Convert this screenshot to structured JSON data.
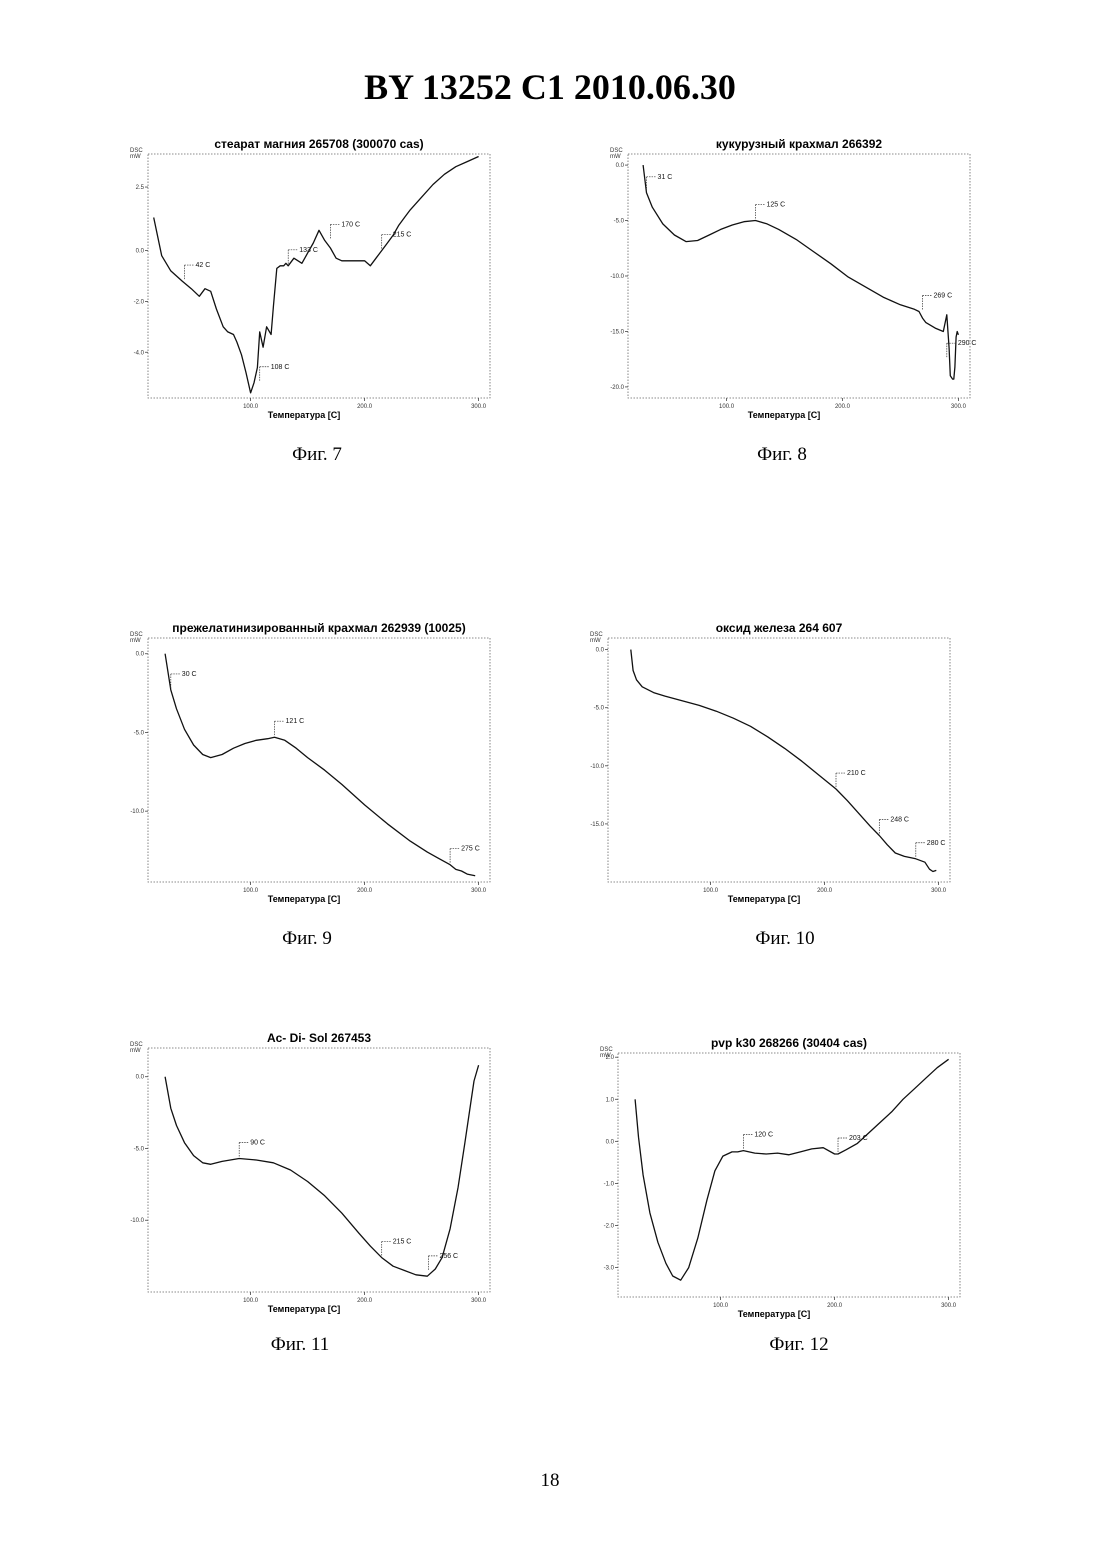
{
  "header": {
    "text": "BY  13252  C1  2010.06.30"
  },
  "page_number": "18",
  "y_unit": {
    "line1": "DSC",
    "line2": "mW"
  },
  "x_axis_label": "Температура [C]",
  "figures": [
    {
      "caption": "Фиг. 7"
    },
    {
      "caption": "Фиг. 8"
    },
    {
      "caption": "Фиг. 9"
    },
    {
      "caption": "Фиг. 10"
    },
    {
      "caption": "Фиг. 11"
    },
    {
      "caption": "Фиг. 12"
    }
  ],
  "chart_data": [
    {
      "type": "line",
      "title": "стеарат магния 265708 (300070 cas)",
      "xlabel": "Температура [C]",
      "ylabel": "DSC mW",
      "xlim": [
        10,
        310
      ],
      "ylim": [
        -5.8,
        3.8
      ],
      "x_ticks": [
        {
          "value": 100,
          "label": "100.0"
        },
        {
          "value": 200,
          "label": "200.0"
        },
        {
          "value": 300,
          "label": "300.0"
        }
      ],
      "y_ticks": [
        {
          "value": 2.5,
          "label": "2.5"
        },
        {
          "value": 0,
          "label": "0.0"
        },
        {
          "value": -2,
          "label": "-2.0"
        },
        {
          "value": -4,
          "label": "-4.0"
        }
      ],
      "series": [
        {
          "x": [
            15,
            22,
            30,
            40,
            48,
            55,
            60,
            65,
            70,
            76,
            80,
            85,
            88,
            92,
            96,
            100,
            103,
            106,
            108,
            111,
            114,
            118,
            120,
            123,
            126,
            129,
            131,
            133,
            138,
            145,
            150,
            155,
            160,
            165,
            170,
            175,
            180,
            190,
            200,
            205,
            210,
            215,
            220,
            225,
            230,
            235,
            240,
            250,
            260,
            270,
            280,
            290,
            300
          ],
          "y": [
            1.3,
            -0.2,
            -0.8,
            -1.2,
            -1.5,
            -1.8,
            -1.5,
            -1.6,
            -2.3,
            -3.0,
            -3.2,
            -3.3,
            -3.6,
            -4.1,
            -4.8,
            -5.6,
            -5.2,
            -4.6,
            -3.2,
            -3.8,
            -3.0,
            -3.3,
            -2.2,
            -0.7,
            -0.6,
            -0.6,
            -0.5,
            -0.6,
            -0.3,
            -0.5,
            -0.1,
            0.3,
            0.8,
            0.4,
            0.1,
            -0.3,
            -0.4,
            -0.4,
            -0.4,
            -0.6,
            -0.3,
            0.0,
            0.3,
            0.6,
            1.0,
            1.3,
            1.6,
            2.1,
            2.6,
            3.0,
            3.3,
            3.5,
            3.7
          ]
        }
      ],
      "annotations": [
        {
          "label": "42 C",
          "x": 42,
          "y": -1.2
        },
        {
          "label": "108 C",
          "x": 108,
          "y": -5.2
        },
        {
          "label": "133 C",
          "x": 133,
          "y": -0.6
        },
        {
          "label": "170 C",
          "x": 170,
          "y": 0.4
        },
        {
          "label": "215 C",
          "x": 215,
          "y": 0.0
        }
      ]
    },
    {
      "type": "line",
      "title": "кукурузный крахмал 266392",
      "xlabel": "Температура [C]",
      "ylabel": "DSC mW",
      "xlim": [
        15,
        310
      ],
      "ylim": [
        -21,
        1
      ],
      "x_ticks": [
        {
          "value": 100,
          "label": "100.0"
        },
        {
          "value": 200,
          "label": "200.0"
        },
        {
          "value": 300,
          "label": "300.0"
        }
      ],
      "y_ticks": [
        {
          "value": 0,
          "label": "0.0"
        },
        {
          "value": -5,
          "label": "-5.0"
        },
        {
          "value": -10,
          "label": "-10.0"
        },
        {
          "value": -15,
          "label": "-15.0"
        },
        {
          "value": -20,
          "label": "-20.0"
        }
      ],
      "series": [
        {
          "x": [
            28,
            31,
            36,
            45,
            55,
            65,
            75,
            85,
            95,
            105,
            115,
            125,
            135,
            145,
            160,
            175,
            190,
            205,
            220,
            235,
            250,
            262,
            266,
            269,
            272,
            280,
            287,
            290,
            292,
            293,
            295,
            296,
            297,
            298,
            299,
            300
          ],
          "y": [
            0,
            -2.5,
            -3.8,
            -5.3,
            -6.3,
            -6.9,
            -6.8,
            -6.3,
            -5.8,
            -5.4,
            -5.1,
            -5.0,
            -5.3,
            -5.8,
            -6.7,
            -7.8,
            -8.9,
            -10.1,
            -11.0,
            -11.9,
            -12.6,
            -13.0,
            -13.2,
            -13.8,
            -14.2,
            -14.7,
            -15.0,
            -13.5,
            -16.5,
            -19.0,
            -19.3,
            -19.3,
            -18.2,
            -15.5,
            -15.0,
            -15.3
          ]
        }
      ],
      "annotations": [
        {
          "label": "31 C",
          "x": 31,
          "y": -2.5
        },
        {
          "label": "125 C",
          "x": 125,
          "y": -5.0
        },
        {
          "label": "269 C",
          "x": 269,
          "y": -13.2
        },
        {
          "label": "290 C",
          "x": 290,
          "y": -17.5
        }
      ]
    },
    {
      "type": "line",
      "title": "прежелатинизированный крахмал 262939 (10025)",
      "xlabel": "Температура [C]",
      "ylabel": "DSC mW",
      "xlim": [
        10,
        310
      ],
      "ylim": [
        -14.5,
        1
      ],
      "x_ticks": [
        {
          "value": 100,
          "label": "100.0"
        },
        {
          "value": 200,
          "label": "200.0"
        },
        {
          "value": 300,
          "label": "300.0"
        }
      ],
      "y_ticks": [
        {
          "value": 0,
          "label": "0.0"
        },
        {
          "value": -5,
          "label": "-5.0"
        },
        {
          "value": -10,
          "label": "-10.0"
        }
      ],
      "series": [
        {
          "x": [
            25,
            30,
            35,
            42,
            50,
            58,
            65,
            75,
            85,
            95,
            105,
            115,
            121,
            130,
            140,
            150,
            165,
            180,
            200,
            220,
            240,
            255,
            265,
            275,
            280,
            285,
            290,
            297
          ],
          "y": [
            0,
            -2.3,
            -3.5,
            -4.8,
            -5.8,
            -6.4,
            -6.6,
            -6.4,
            -6.0,
            -5.7,
            -5.5,
            -5.4,
            -5.3,
            -5.5,
            -6.0,
            -6.6,
            -7.4,
            -8.3,
            -9.6,
            -10.8,
            -11.9,
            -12.6,
            -13.0,
            -13.4,
            -13.7,
            -13.8,
            -14.0,
            -14.1
          ]
        }
      ],
      "annotations": [
        {
          "label": "30 C",
          "x": 30,
          "y": -2.3
        },
        {
          "label": "121 C",
          "x": 121,
          "y": -5.3
        },
        {
          "label": "275 C",
          "x": 275,
          "y": -13.4
        }
      ]
    },
    {
      "type": "line",
      "title": "оксид железа 264 607",
      "xlabel": "Температура [C]",
      "ylabel": "DSC mW",
      "xlim": [
        10,
        310
      ],
      "ylim": [
        -20,
        1
      ],
      "x_ticks": [
        {
          "value": 100,
          "label": "100.0"
        },
        {
          "value": 200,
          "label": "200.0"
        },
        {
          "value": 300,
          "label": "300.0"
        }
      ],
      "y_ticks": [
        {
          "value": 0,
          "label": "0.0"
        },
        {
          "value": -5,
          "label": "-5.0"
        },
        {
          "value": -10,
          "label": "-10.0"
        },
        {
          "value": -15,
          "label": "-15.0"
        }
      ],
      "series": [
        {
          "x": [
            30,
            32,
            35,
            40,
            50,
            60,
            75,
            90,
            105,
            120,
            135,
            150,
            165,
            180,
            195,
            210,
            220,
            230,
            240,
            248,
            255,
            262,
            270,
            280,
            288,
            292,
            295,
            298
          ],
          "y": [
            0,
            -1.8,
            -2.6,
            -3.2,
            -3.7,
            -4.0,
            -4.4,
            -4.8,
            -5.3,
            -5.9,
            -6.6,
            -7.5,
            -8.5,
            -9.6,
            -10.8,
            -12.0,
            -13.0,
            -14.1,
            -15.2,
            -16.0,
            -16.8,
            -17.5,
            -17.8,
            -18.0,
            -18.3,
            -18.9,
            -19.1,
            -19.0
          ]
        }
      ],
      "annotations": [
        {
          "label": "210 C",
          "x": 210,
          "y": -12.0
        },
        {
          "label": "248 C",
          "x": 248,
          "y": -16.0
        },
        {
          "label": "280 C",
          "x": 280,
          "y": -18.0
        }
      ]
    },
    {
      "type": "line",
      "title": "Ac- Di- Sol 267453",
      "xlabel": "Температура [C]",
      "ylabel": "DSC mW",
      "xlim": [
        10,
        310
      ],
      "ylim": [
        -15,
        2
      ],
      "x_ticks": [
        {
          "value": 100,
          "label": "100.0"
        },
        {
          "value": 200,
          "label": "200.0"
        },
        {
          "value": 300,
          "label": "300.0"
        }
      ],
      "y_ticks": [
        {
          "value": 0,
          "label": "0.0"
        },
        {
          "value": -5,
          "label": "-5.0"
        },
        {
          "value": -10,
          "label": "-10.0"
        }
      ],
      "series": [
        {
          "x": [
            25,
            30,
            35,
            42,
            50,
            58,
            65,
            75,
            90,
            105,
            120,
            135,
            150,
            165,
            180,
            195,
            205,
            215,
            225,
            235,
            245,
            255,
            262,
            268,
            275,
            282,
            288,
            293,
            296,
            300
          ],
          "y": [
            0,
            -2.2,
            -3.4,
            -4.6,
            -5.5,
            -6.0,
            -6.1,
            -5.9,
            -5.7,
            -5.8,
            -6.0,
            -6.5,
            -7.3,
            -8.3,
            -9.5,
            -10.9,
            -11.8,
            -12.6,
            -13.2,
            -13.5,
            -13.8,
            -13.9,
            -13.4,
            -12.6,
            -10.6,
            -7.7,
            -4.6,
            -1.9,
            -0.3,
            0.8
          ],
          "x2": []
        }
      ],
      "annotations": [
        {
          "label": "90 C",
          "x": 90,
          "y": -5.7
        },
        {
          "label": "215 C",
          "x": 215,
          "y": -12.6
        },
        {
          "label": "256 C",
          "x": 256,
          "y": -13.6
        }
      ]
    },
    {
      "type": "line",
      "title": "pvp k30 268266 (30404 cas)",
      "xlabel": "Температура [C]",
      "ylabel": "DSC mW",
      "xlim": [
        10,
        310
      ],
      "ylim": [
        -3.7,
        2.1
      ],
      "x_ticks": [
        {
          "value": 100,
          "label": "100.0"
        },
        {
          "value": 200,
          "label": "200.0"
        },
        {
          "value": 300,
          "label": "300.0"
        }
      ],
      "y_ticks": [
        {
          "value": 2,
          "label": "2.0"
        },
        {
          "value": 1,
          "label": "1.0"
        },
        {
          "value": 0,
          "label": "0.0"
        },
        {
          "value": -1,
          "label": "-1.0"
        },
        {
          "value": -2,
          "label": "-2.0"
        },
        {
          "value": -3,
          "label": "-3.0"
        }
      ],
      "series": [
        {
          "x": [
            25,
            28,
            32,
            38,
            45,
            52,
            58,
            65,
            72,
            80,
            88,
            95,
            102,
            110,
            115,
            120,
            130,
            140,
            150,
            160,
            170,
            180,
            190,
            200,
            203,
            210,
            220,
            230,
            240,
            250,
            260,
            270,
            280,
            290,
            300
          ],
          "y": [
            1.0,
            0.1,
            -0.8,
            -1.7,
            -2.4,
            -2.9,
            -3.2,
            -3.3,
            -3.0,
            -2.3,
            -1.4,
            -0.7,
            -0.35,
            -0.25,
            -0.25,
            -0.22,
            -0.28,
            -0.3,
            -0.28,
            -0.32,
            -0.25,
            -0.18,
            -0.15,
            -0.3,
            -0.3,
            -0.2,
            -0.05,
            0.2,
            0.45,
            0.7,
            1.0,
            1.25,
            1.5,
            1.75,
            1.95
          ]
        }
      ],
      "annotations": [
        {
          "label": "120 C",
          "x": 120,
          "y": -0.22
        },
        {
          "label": "203 C",
          "x": 203,
          "y": -0.3
        }
      ]
    }
  ]
}
